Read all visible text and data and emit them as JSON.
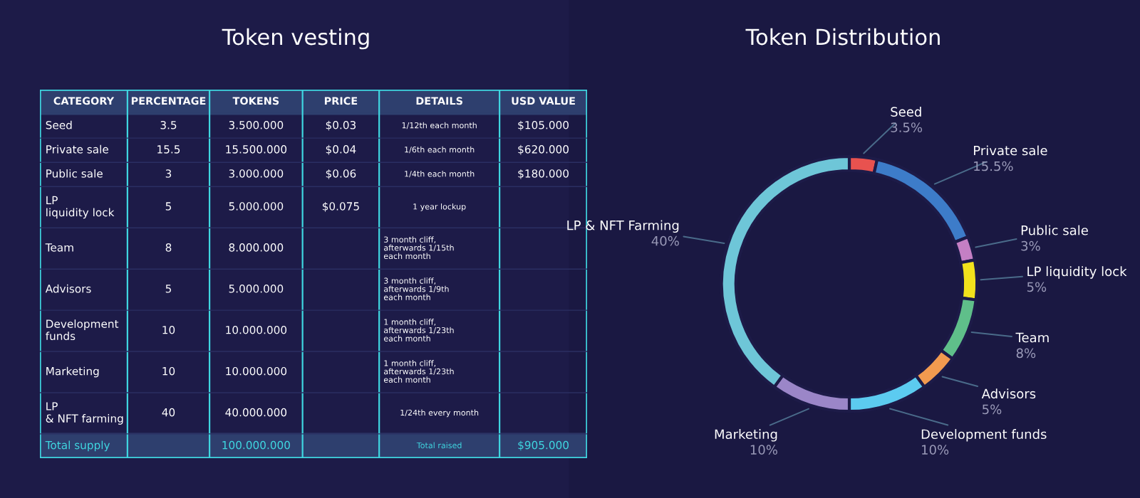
{
  "chart_data": [
    {
      "type": "other",
      "title": "Token vesting",
      "categories": [
        "CATEGORY",
        "PERCENTAGE",
        "TOKENS",
        "PRICE",
        "DETAILS",
        "USD VALUE"
      ],
      "cell_labels": [
        [
          "Seed",
          "3.5",
          "3.500.000",
          "$0.03",
          "1/12th each month",
          "$105.000"
        ],
        [
          "Private sale",
          "15.5",
          "15.500.000",
          "$0.04",
          "1/6th each month",
          "$620.000"
        ],
        [
          "Public sale",
          "3",
          "3.000.000",
          "$0.06",
          "1/4th each month",
          "$180.000"
        ],
        [
          "LP liquidity lock",
          "5",
          "5.000.000",
          "$0.075",
          "1 year lockup",
          null
        ],
        [
          "Team",
          "8",
          "8.000.000",
          null,
          "3 month cliff, afterwards 1/15th each month",
          null
        ],
        [
          "Advisors",
          "5",
          "5.000.000",
          null,
          "3 month cliff, afterwards 1/9th each month",
          null
        ],
        [
          "Development funds",
          "10",
          "10.000.000",
          null,
          "1 month cliff, afterwards 1/23th each month",
          null
        ],
        [
          "Marketing",
          "10",
          "10.000.000",
          null,
          "1 month cliff, afterwards 1/23th each month",
          null
        ],
        [
          "LP & NFT farming",
          "40",
          "40.000.000",
          null,
          "1/24th every month",
          null
        ],
        [
          "Total supply",
          null,
          "100.000.000",
          null,
          "Total raised",
          "$905.000"
        ]
      ]
    },
    {
      "type": "donut",
      "title": "Token Distribution",
      "categories": [
        "Seed",
        "Private sale",
        "Public sale",
        "LP liquidity lock",
        "Team",
        "Advisors",
        "Development funds",
        "Marketing",
        "LP & NFT Farming"
      ],
      "values": [
        3.5,
        15.5,
        3,
        5,
        8,
        5,
        10,
        10,
        40
      ],
      "value_labels": [
        "3.5%",
        "15.5%",
        "3%",
        "5%",
        "8%",
        "5%",
        "10%",
        "10%",
        "40%"
      ],
      "colors": [
        "#e8524f",
        "#3d7cc9",
        "#c47fc4",
        "#f2e21c",
        "#5fbf8a",
        "#f29a4f",
        "#5ccbf0",
        "#9b86c8",
        "#6ec6d8"
      ]
    }
  ]
}
